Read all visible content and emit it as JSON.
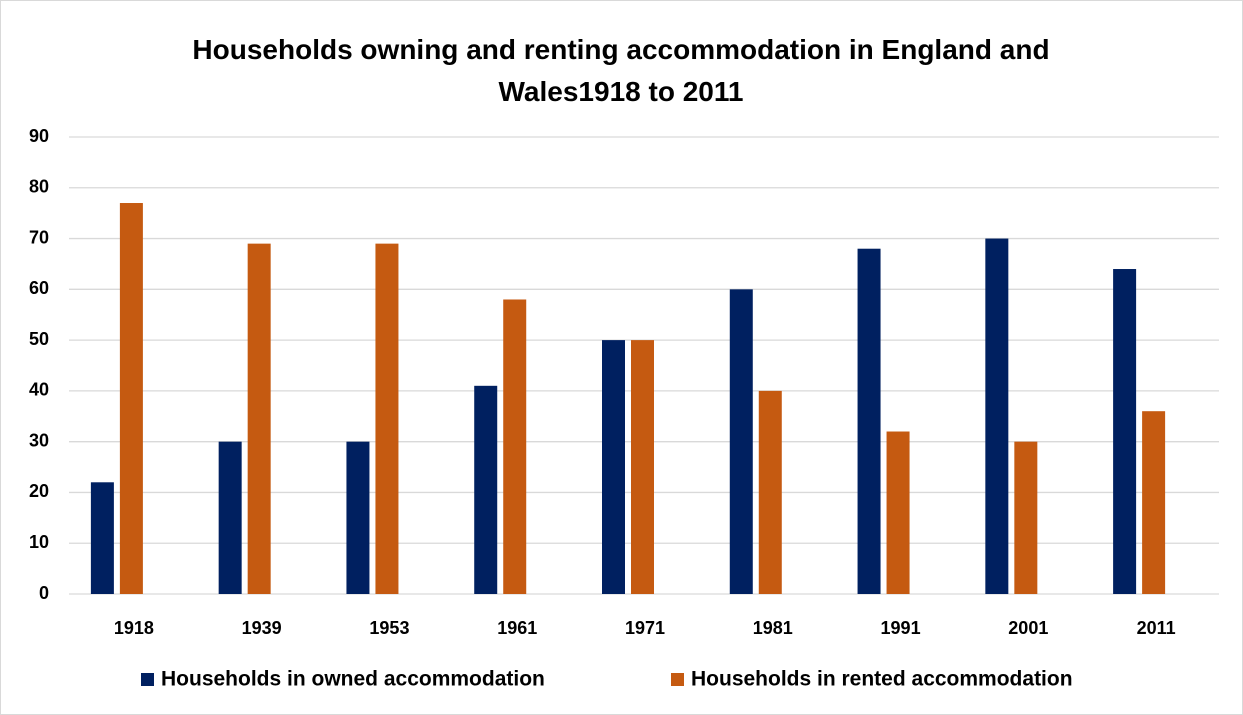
{
  "chart_data": {
    "type": "bar",
    "title": "Households owning and renting accommodation in England and Wales1918 to 2011",
    "categories": [
      "1918",
      "1939",
      "1953",
      "1961",
      "1971",
      "1981",
      "1991",
      "2001",
      "2011"
    ],
    "series": [
      {
        "name": "Households in owned accommodation",
        "color": "#002060",
        "values": [
          22,
          30,
          30,
          41,
          50,
          60,
          68,
          70,
          64
        ]
      },
      {
        "name": "Households in rented accommodation",
        "color": "#c55a11",
        "values": [
          77,
          69,
          69,
          58,
          50,
          40,
          32,
          30,
          36
        ]
      }
    ],
    "ylim": [
      0,
      90
    ],
    "yticks": [
      0,
      10,
      20,
      30,
      40,
      50,
      60,
      70,
      80,
      90
    ],
    "grid": true,
    "legend": "bottom"
  }
}
